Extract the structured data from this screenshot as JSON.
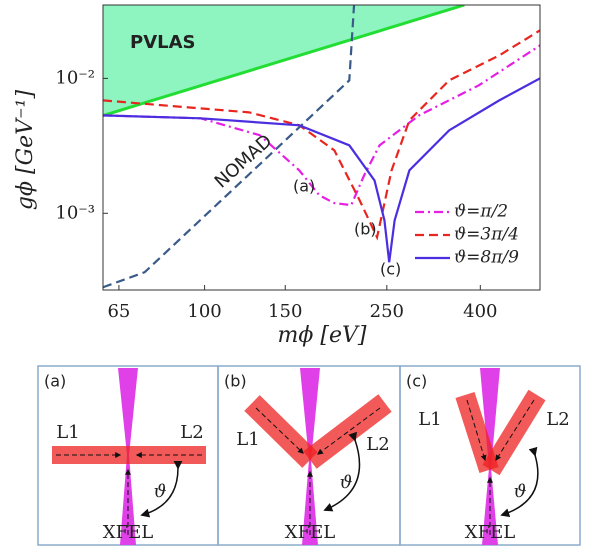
{
  "chart_data": {
    "type": "line",
    "log_x": true,
    "log_y": true,
    "x_label": "mϕ [eV]",
    "y_label": "gϕ [GeV⁻¹]",
    "xlim": [
      60,
      540
    ],
    "ylim": [
      0.00027,
      0.035
    ],
    "xticks": [
      65,
      100,
      150,
      250,
      400
    ],
    "yticks": [
      {
        "value": 0.001,
        "label": "10⁻³"
      },
      {
        "value": 0.01,
        "label": "10⁻²"
      }
    ],
    "series": [
      {
        "name": "PVLAS",
        "color": "#22dd33",
        "fill": "#8ef5c0",
        "style": "solid",
        "in_legend": false,
        "x": [
          60,
          369
        ],
        "values": [
          0.0053,
          0.035
        ]
      },
      {
        "name": "NOMAD",
        "color": "#3a5a8a",
        "style": "dashed",
        "in_legend": false,
        "x": [
          60,
          74,
          207,
          212
        ],
        "values": [
          0.000283,
          0.000366,
          0.00967,
          0.035
        ]
      },
      {
        "name": "ϑ=π/2",
        "color": "#e61ee6",
        "style": "dashdot",
        "in_legend": true,
        "x": [
          60,
          98,
          132,
          161,
          178,
          192,
          209,
          223,
          241,
          294,
          397,
          540
        ],
        "values": [
          0.00532,
          0.00506,
          0.00379,
          0.00208,
          0.00136,
          0.00119,
          0.00115,
          0.00191,
          0.00319,
          0.00532,
          0.00888,
          0.01754
        ]
      },
      {
        "name": "ϑ=3π/4",
        "color": "#e8251e",
        "style": "dashed",
        "in_legend": true,
        "x": [
          60,
          125,
          161,
          192,
          218,
          238,
          256,
          280,
          342,
          440,
          540
        ],
        "values": [
          0.00687,
          0.0056,
          0.00449,
          0.00293,
          0.00125,
          0.000664,
          0.00208,
          0.00489,
          0.00967,
          0.0148,
          0.0227
        ]
      },
      {
        "name": "ϑ=8π/9",
        "color": "#4b2ee0",
        "style": "solid",
        "in_legend": true,
        "x": [
          60,
          98,
          161,
          207,
          235,
          247,
          253,
          260,
          280,
          342,
          440,
          540
        ],
        "values": [
          0.00532,
          0.00506,
          0.00449,
          0.00319,
          0.00175,
          0.000887,
          0.000434,
          0.000887,
          0.00208,
          0.00412,
          0.00687,
          0.01
        ]
      }
    ],
    "annotations": [
      "(a)",
      "(b)",
      "(c)"
    ]
  },
  "panels": [
    {
      "label": "(a)",
      "l1": "L1",
      "l2": "L2",
      "angle": "ϑ",
      "source": "XFEL"
    },
    {
      "label": "(b)",
      "l1": "L1",
      "l2": "L2",
      "angle": "ϑ",
      "source": "XFEL"
    },
    {
      "label": "(c)",
      "l1": "L1",
      "l2": "L2",
      "angle": "ϑ",
      "source": "XFEL"
    }
  ]
}
